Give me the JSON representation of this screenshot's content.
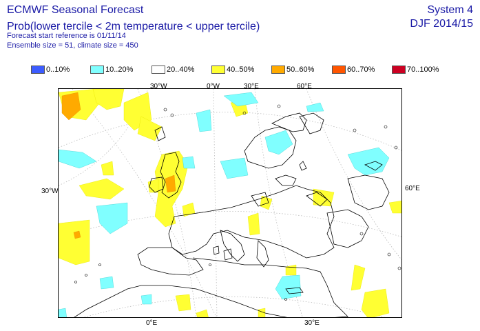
{
  "header": {
    "title": "ECMWF Seasonal Forecast",
    "subtitle": "Prob(lower tercile < 2m temperature < upper tercile)",
    "start_ref": "Forecast start reference is 01/11/14",
    "ensemble": "Ensemble size = 51, climate size = 450",
    "system": "System 4",
    "season": "DJF 2014/15"
  },
  "legend": [
    {
      "label": "0..10%",
      "color": "#3c5cff"
    },
    {
      "label": "10..20%",
      "color": "#80ffff"
    },
    {
      "label": "20..40%",
      "color": "#ffffff"
    },
    {
      "label": "40..50%",
      "color": "#ffff33"
    },
    {
      "label": "50..60%",
      "color": "#ffaa00"
    },
    {
      "label": "60..70%",
      "color": "#ff5500"
    },
    {
      "label": "70..100%",
      "color": "#cc0022"
    }
  ],
  "map": {
    "top_labels": [
      "30°W",
      "0°W",
      "30°E",
      "60°E"
    ],
    "left_label": "30°W",
    "right_label": "60°E",
    "bottom_labels": [
      "0°E",
      "30°E"
    ]
  }
}
